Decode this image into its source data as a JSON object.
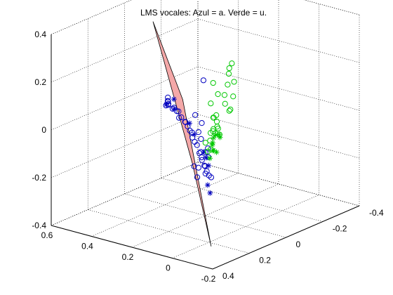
{
  "chart_data": {
    "type": "scatter3d",
    "title": "LMS vocales: Azul = a. Verde = u.",
    "xlabel": "",
    "ylabel": "",
    "zlabel": "",
    "grid": true,
    "box": true,
    "xlim": [
      -0.2,
      0.6
    ],
    "ylim": [
      -0.4,
      0.4
    ],
    "zlim": [
      -0.4,
      0.4
    ],
    "xticks": [
      "-0.2",
      "0",
      "0.2",
      "0.4",
      "0.6"
    ],
    "yticks": [
      "-0.4",
      "-0.2",
      "0",
      "0.2",
      "0.4"
    ],
    "zticks": [
      "-0.4",
      "-0.2",
      "0",
      "0.2",
      "0.4"
    ],
    "colors": {
      "a": "#0000bf",
      "u": "#00c800",
      "plane": "#f4a8a8",
      "plane_edge": "#000000"
    },
    "plane": {
      "description": "separating plane",
      "corners": [
        [
          0.55,
          -0.1,
          0.3
        ],
        [
          0.33,
          -0.02,
          0.05
        ],
        [
          -0.12,
          0.32,
          -0.35
        ],
        [
          0.1,
          0.18,
          -0.1
        ]
      ]
    },
    "series": [
      {
        "marker": "o",
        "color": "#0000bf",
        "points": [
          [
            0.44,
            -0.06,
            0.02
          ],
          [
            0.43,
            -0.05,
            0.01
          ],
          [
            0.45,
            -0.07,
            0.0
          ],
          [
            0.42,
            -0.04,
            0.0
          ],
          [
            0.44,
            -0.05,
            -0.01
          ],
          [
            0.41,
            -0.03,
            0.01
          ],
          [
            0.4,
            -0.05,
            -0.01
          ],
          [
            0.38,
            -0.02,
            0.0
          ],
          [
            0.36,
            -0.03,
            -0.01
          ],
          [
            0.35,
            -0.01,
            0.0
          ],
          [
            0.33,
            0.0,
            -0.02
          ],
          [
            0.31,
            0.01,
            -0.01
          ],
          [
            0.3,
            0.0,
            -0.03
          ],
          [
            0.28,
            0.02,
            -0.02
          ],
          [
            0.26,
            0.03,
            -0.03
          ],
          [
            0.24,
            0.04,
            -0.04
          ],
          [
            0.22,
            0.05,
            -0.04
          ],
          [
            0.2,
            0.07,
            -0.05
          ],
          [
            0.18,
            0.08,
            -0.06
          ],
          [
            0.15,
            0.1,
            -0.06
          ],
          [
            0.12,
            0.12,
            -0.08
          ],
          [
            0.1,
            0.13,
            -0.09
          ],
          [
            0.08,
            0.15,
            -0.09
          ],
          [
            0.05,
            0.17,
            -0.1
          ],
          [
            0.02,
            0.19,
            -0.11
          ],
          [
            0.0,
            0.2,
            -0.12
          ],
          [
            -0.02,
            0.21,
            -0.12
          ],
          [
            0.06,
            0.14,
            -0.04
          ],
          [
            0.03,
            0.17,
            -0.06
          ],
          [
            0.09,
            0.12,
            -0.07
          ],
          [
            0.13,
            0.1,
            -0.03
          ],
          [
            0.17,
            0.07,
            -0.02
          ],
          [
            0.01,
            0.21,
            -0.08
          ],
          [
            -0.01,
            0.23,
            -0.1
          ],
          [
            0.07,
            0.18,
            -0.11
          ],
          [
            0.04,
            0.22,
            -0.13
          ],
          [
            0.19,
            0.03,
            0.0
          ],
          [
            0.25,
            0.0,
            0.01
          ],
          [
            0.11,
            0.16,
            -0.12
          ],
          [
            0.14,
            0.09,
            -0.09
          ],
          [
            0.2,
            0.01,
            0.17
          ]
        ]
      },
      {
        "marker": "*",
        "color": "#0000bf",
        "points": [
          [
            0.43,
            -0.04,
            0.0
          ],
          [
            0.41,
            -0.06,
            0.02
          ],
          [
            0.39,
            -0.04,
            -0.01
          ],
          [
            0.26,
            0.02,
            -0.02
          ],
          [
            0.2,
            0.06,
            -0.04
          ],
          [
            0.05,
            0.16,
            -0.07
          ],
          [
            0.02,
            0.18,
            -0.09
          ],
          [
            -0.03,
            0.24,
            -0.14
          ],
          [
            -0.06,
            0.26,
            -0.16
          ],
          [
            0.08,
            0.14,
            -0.06
          ]
        ]
      },
      {
        "marker": "o",
        "color": "#00c800",
        "points": [
          [
            0.25,
            -0.2,
            0.16
          ],
          [
            0.22,
            -0.15,
            0.14
          ],
          [
            0.27,
            -0.12,
            0.1
          ],
          [
            0.18,
            -0.1,
            0.12
          ],
          [
            0.15,
            -0.05,
            0.1
          ],
          [
            0.12,
            -0.02,
            0.08
          ],
          [
            0.2,
            -0.03,
            0.06
          ],
          [
            0.1,
            0.05,
            0.06
          ],
          [
            0.07,
            0.08,
            0.05
          ],
          [
            0.05,
            0.1,
            0.04
          ],
          [
            0.0,
            0.15,
            0.06
          ],
          [
            -0.02,
            0.2,
            0.07
          ],
          [
            -0.04,
            0.22,
            0.09
          ],
          [
            0.02,
            0.12,
            0.02
          ],
          [
            0.06,
            0.1,
            0.01
          ],
          [
            0.14,
            0.02,
            0.03
          ],
          [
            0.08,
            -0.02,
            0.12
          ],
          [
            0.03,
            0.05,
            0.1
          ],
          [
            -0.01,
            0.1,
            0.12
          ],
          [
            0.11,
            0.07,
            -0.01
          ],
          [
            0.04,
            0.15,
            0.0
          ],
          [
            0.16,
            0.0,
            0.02
          ],
          [
            0.01,
            0.18,
            -0.02
          ],
          [
            -0.03,
            0.24,
            0.0
          ],
          [
            0.09,
            0.12,
            -0.03
          ],
          [
            0.21,
            -0.08,
            0.08
          ],
          [
            0.19,
            -0.12,
            0.18
          ],
          [
            0.13,
            -0.08,
            0.15
          ]
        ]
      },
      {
        "marker": "*",
        "color": "#00c800",
        "points": [
          [
            0.05,
            0.12,
            0.0
          ],
          [
            0.02,
            0.16,
            -0.01
          ],
          [
            0.0,
            0.18,
            0.01
          ],
          [
            -0.02,
            0.2,
            -0.01
          ],
          [
            0.03,
            0.13,
            0.02
          ],
          [
            -0.04,
            0.22,
            0.0
          ],
          [
            0.0,
            0.14,
            0.02
          ],
          [
            -0.01,
            0.17,
            -0.03
          ],
          [
            -0.05,
            0.25,
            -0.02
          ],
          [
            0.04,
            0.1,
            0.01
          ]
        ]
      }
    ]
  }
}
